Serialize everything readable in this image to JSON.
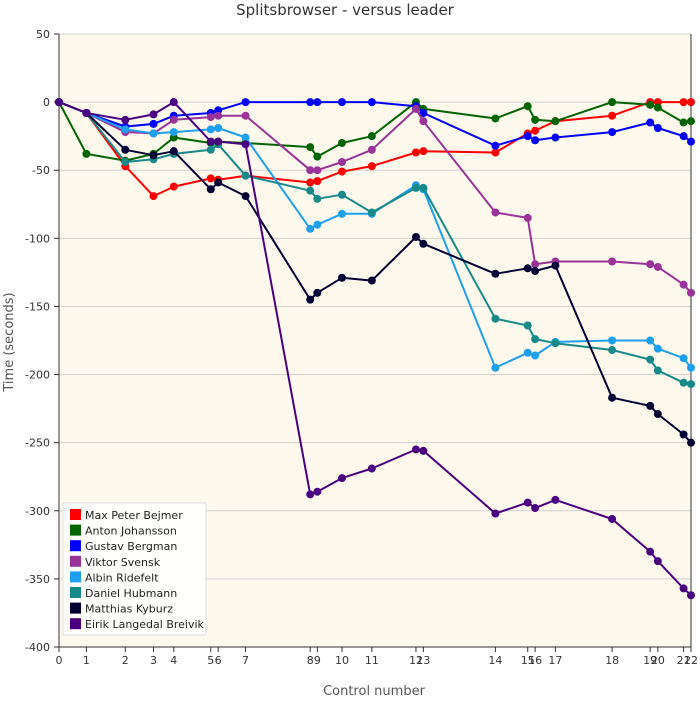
{
  "chart_data": {
    "type": "line",
    "title": "Splitsbrowser - versus leader",
    "xlabel": "Control number",
    "ylabel": "Time (seconds)",
    "ylim": [
      -400,
      50
    ],
    "xlim": [
      0,
      22
    ],
    "yticks": [
      50,
      0,
      -50,
      -100,
      -150,
      -200,
      -250,
      -300,
      -350,
      -400
    ],
    "xticks": [
      0,
      1,
      2,
      3,
      4,
      5,
      6,
      7,
      8,
      9,
      10,
      11,
      12,
      13,
      14,
      15,
      16,
      17,
      18,
      19,
      20,
      21,
      22
    ],
    "xtick_x": [
      0,
      1,
      2.42,
      3.45,
      4.19,
      5.54,
      5.81,
      6.81,
      9.17,
      9.43,
      10.33,
      11.42,
      13.03,
      13.3,
      15.93,
      17.11,
      17.38,
      18.12,
      20.19,
      21.58,
      21.86,
      22.8,
      23.07
    ],
    "background": "#fdf9ed",
    "grid": true,
    "legend_position": "bottom-left",
    "series": [
      {
        "name": "Max Peter Bejmer",
        "color": "#ff0000",
        "x": [
          0,
          1,
          2.42,
          3.45,
          4.19,
          5.54,
          5.81,
          6.81,
          9.17,
          9.43,
          10.33,
          11.42,
          13.03,
          13.3,
          15.93,
          17.11,
          17.38,
          18.12,
          20.19,
          21.58,
          21.86,
          22.8,
          23.07
        ],
        "y": [
          0,
          -8,
          -47,
          -69,
          -62,
          -56,
          -57,
          -54,
          -59,
          -58,
          -51,
          -47,
          -37,
          -36,
          -37,
          -23,
          -21,
          -14,
          -10,
          0,
          0,
          0,
          0
        ]
      },
      {
        "name": "Anton Johansson",
        "color": "#006400",
        "x": [
          0,
          1,
          2.42,
          3.45,
          4.19,
          5.54,
          5.81,
          6.81,
          9.17,
          9.43,
          10.33,
          11.42,
          13.03,
          13.3,
          15.93,
          17.11,
          17.38,
          18.12,
          20.19,
          21.58,
          21.86,
          22.8,
          23.07
        ],
        "y": [
          0,
          -38,
          -43,
          -38,
          -26,
          -30,
          -29,
          -30,
          -33,
          -40,
          -30,
          -25,
          0,
          -5,
          -12,
          -3,
          -13,
          -14,
          0,
          -2,
          -4,
          -15,
          -14
        ]
      },
      {
        "name": "Gustav Bergman",
        "color": "#0000ff",
        "x": [
          0,
          1,
          2.42,
          3.45,
          4.19,
          5.54,
          5.81,
          6.81,
          9.17,
          9.43,
          10.33,
          11.42,
          13.03,
          13.3,
          15.93,
          17.11,
          17.38,
          18.12,
          20.19,
          21.58,
          21.86,
          22.8,
          23.07
        ],
        "y": [
          0,
          -8,
          -18,
          -16,
          -10,
          -8,
          -6,
          0,
          0,
          0,
          0,
          0,
          -3,
          -8,
          -32,
          -25,
          -28,
          -26,
          -22,
          -15,
          -19,
          -25,
          -29
        ]
      },
      {
        "name": "Viktor Svensk",
        "color": "#993399",
        "x": [
          0,
          1,
          2.42,
          3.45,
          4.19,
          5.54,
          5.81,
          6.81,
          9.17,
          9.43,
          10.33,
          11.42,
          13.03,
          13.3,
          15.93,
          17.11,
          17.38,
          18.12,
          20.19,
          21.58,
          21.86,
          22.8,
          23.07
        ],
        "y": [
          0,
          -8,
          -22,
          -23,
          -13,
          -11,
          -10,
          -10,
          -50,
          -50,
          -44,
          -35,
          -5,
          -14,
          -81,
          -85,
          -119,
          -117,
          -117,
          -119,
          -121,
          -134,
          -140
        ]
      },
      {
        "name": "Albin Ridefelt",
        "color": "#1ea0f0",
        "x": [
          0,
          1,
          2.42,
          3.45,
          4.19,
          5.54,
          5.81,
          6.81,
          9.17,
          9.43,
          10.33,
          11.42,
          13.03,
          13.3,
          15.93,
          17.11,
          17.38,
          18.12,
          20.19,
          21.58,
          21.86,
          22.8,
          23.07
        ],
        "y": [
          0,
          -8,
          -20,
          -23,
          -22,
          -20,
          -19,
          -26,
          -93,
          -90,
          -82,
          -82,
          -61,
          -64,
          -195,
          -184,
          -186,
          -176,
          -175,
          -175,
          -181,
          -188,
          -195
        ]
      },
      {
        "name": "Daniel Hubmann",
        "color": "#168a8a",
        "x": [
          0,
          1,
          2.42,
          3.45,
          4.19,
          5.54,
          5.81,
          6.81,
          9.17,
          9.43,
          10.33,
          11.42,
          13.03,
          13.3,
          15.93,
          17.11,
          17.38,
          18.12,
          20.19,
          21.58,
          21.86,
          22.8,
          23.07
        ],
        "y": [
          0,
          -8,
          -44,
          -42,
          -38,
          -35,
          -31,
          -54,
          -65,
          -71,
          -68,
          -81,
          -63,
          -63,
          -159,
          -164,
          -174,
          -177,
          -182,
          -189,
          -197,
          -206,
          -207
        ]
      },
      {
        "name": "Matthias Kyburz",
        "color": "#000033",
        "x": [
          0,
          1,
          2.42,
          3.45,
          4.19,
          5.54,
          5.81,
          6.81,
          9.17,
          9.43,
          10.33,
          11.42,
          13.03,
          13.3,
          15.93,
          17.11,
          17.38,
          18.12,
          20.19,
          21.58,
          21.86,
          22.8,
          23.07
        ],
        "y": [
          0,
          -8,
          -35,
          -39,
          -36,
          -64,
          -59,
          -69,
          -145,
          -140,
          -129,
          -131,
          -99,
          -104,
          -126,
          -122,
          -124,
          -120,
          -217,
          -223,
          -229,
          -244,
          -250
        ]
      },
      {
        "name": "Eirik Langedal Breivik",
        "color": "#4b0082",
        "x": [
          0,
          1,
          2.42,
          3.45,
          4.19,
          5.54,
          5.81,
          6.81,
          9.17,
          9.43,
          10.33,
          11.42,
          13.03,
          13.3,
          15.93,
          17.11,
          17.38,
          18.12,
          20.19,
          21.58,
          21.86,
          22.8,
          23.07
        ],
        "y": [
          0,
          -8,
          -13,
          -9,
          0,
          -29,
          -29,
          -31,
          -288,
          -286,
          -276,
          -269,
          -255,
          -256,
          -302,
          -294,
          -298,
          -292,
          -306,
          -330,
          -337,
          -357,
          -362
        ]
      }
    ]
  }
}
